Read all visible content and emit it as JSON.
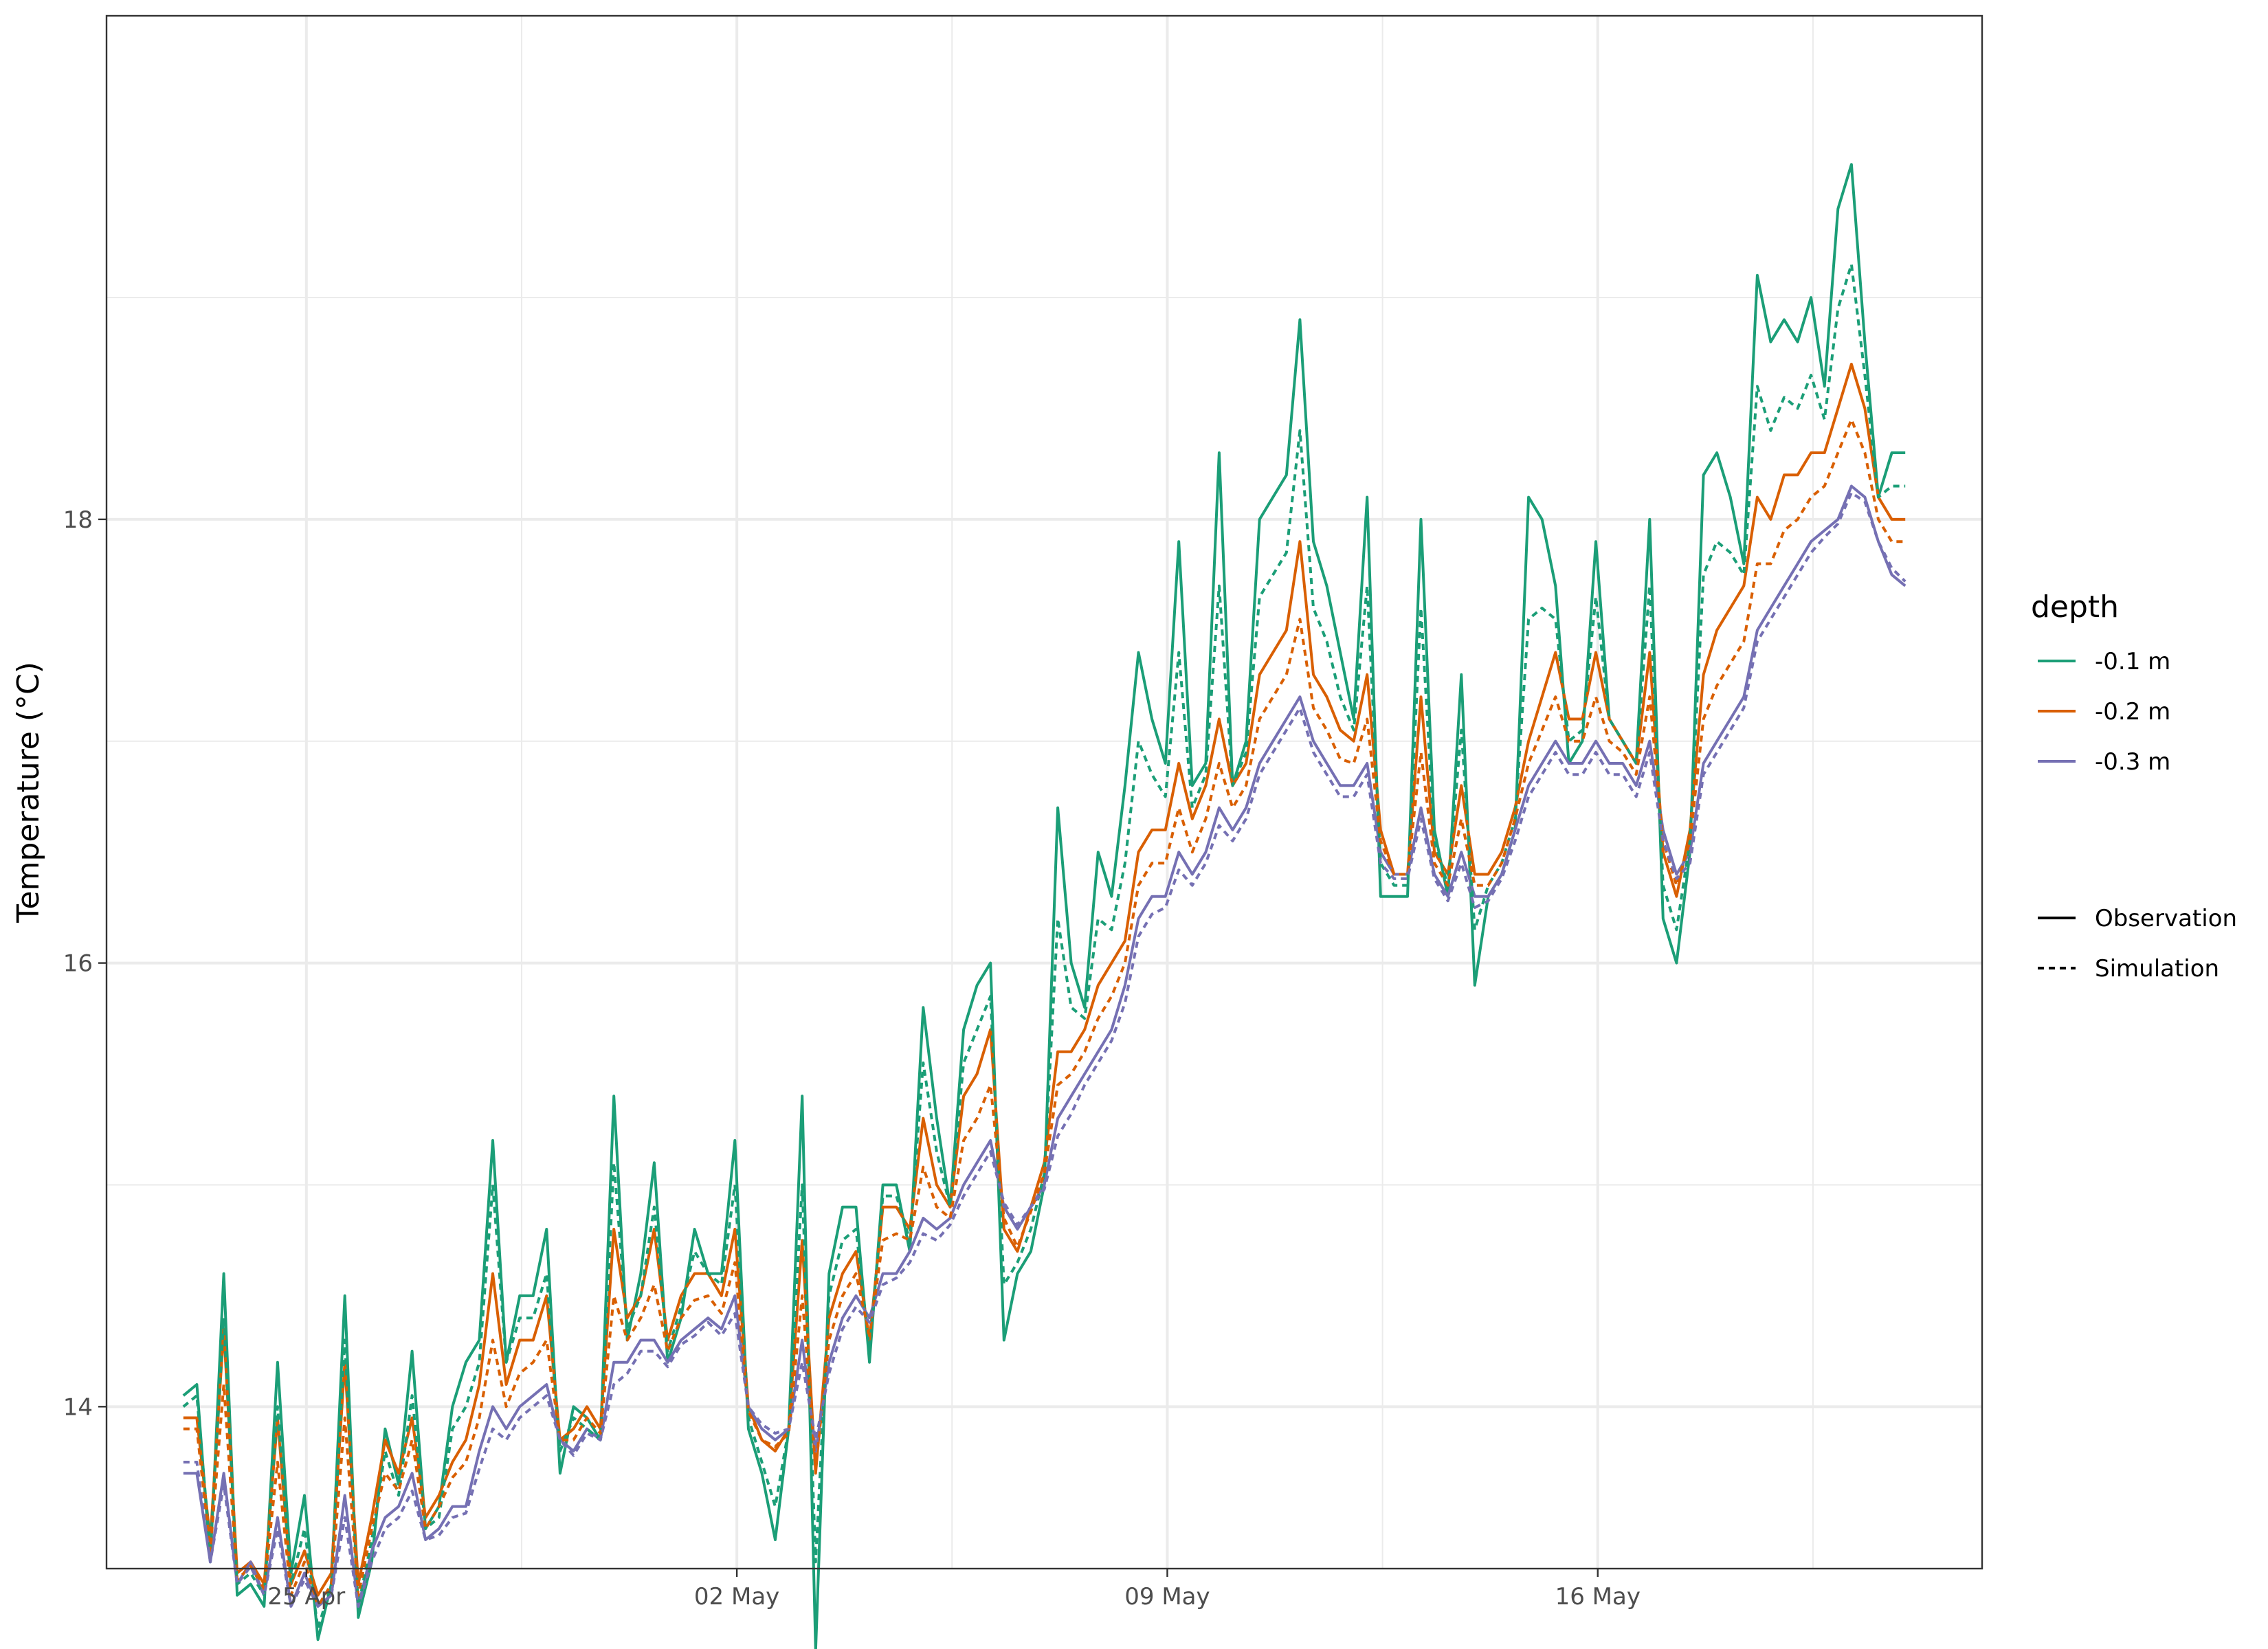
{
  "chart_data": {
    "type": "line",
    "ylabel": "Temperature (°C)",
    "xlabel": "",
    "x_start": "2024-04-23",
    "x_end": "2024-05-21",
    "xlim": [
      "2024-04-21 18:00",
      "2024-05-22 06:00"
    ],
    "ylim": [
      13.27,
      20.27
    ],
    "x_ticks": [
      {
        "date": "2024-04-25",
        "label": "25 Apr"
      },
      {
        "date": "2024-05-02",
        "label": "02 May"
      },
      {
        "date": "2024-05-09",
        "label": "09 May"
      },
      {
        "date": "2024-05-16",
        "label": "16 May"
      }
    ],
    "y_ticks": [
      {
        "value": 14,
        "label": "14"
      },
      {
        "value": 16,
        "label": "16"
      },
      {
        "value": 18,
        "label": "18"
      }
    ],
    "grid": true,
    "legend_position": "right",
    "legend": {
      "color_title": "depth",
      "color_entries": [
        "-0.1 m",
        "-0.2 m",
        "-0.3 m"
      ],
      "linetype_entries": [
        "Observation",
        "Simulation"
      ]
    },
    "series": [
      {
        "name": "-0.1 m",
        "type": "Observation",
        "color": "#1b9e77",
        "dash": "solid",
        "values": [
          14.05,
          14.1,
          13.3,
          14.6,
          13.15,
          13.2,
          13.1,
          14.2,
          13.25,
          13.6,
          12.95,
          13.2,
          14.5,
          13.05,
          13.3,
          13.9,
          13.65,
          14.25,
          13.45,
          13.55,
          14.0,
          14.2,
          14.3,
          15.2,
          14.2,
          14.5,
          14.5,
          14.8,
          13.7,
          14.0,
          13.95,
          13.85,
          15.4,
          14.3,
          14.6,
          15.1,
          14.2,
          14.4,
          14.8,
          14.6,
          14.6,
          15.2,
          13.9,
          13.7,
          13.4,
          13.9,
          15.4,
          12.9,
          14.6,
          14.9,
          14.9,
          14.2,
          15.0,
          15.0,
          14.7,
          15.8,
          15.3,
          14.9,
          15.7,
          15.9,
          16.0,
          14.3,
          14.6,
          14.7,
          15.0,
          16.7,
          16.0,
          15.8,
          16.5,
          16.3,
          16.8,
          17.4,
          17.1,
          16.9,
          17.9,
          16.8,
          16.9,
          18.3,
          16.8,
          17.0,
          18.0,
          18.1,
          18.2,
          18.9,
          17.9,
          17.7,
          17.4,
          17.1,
          18.1,
          16.3,
          16.3,
          16.3,
          18.0,
          16.6,
          16.3,
          17.3,
          15.9,
          16.3,
          16.4,
          16.6,
          18.1,
          18.0,
          17.7,
          16.9,
          17.0,
          17.9,
          17.1,
          17.0,
          16.9,
          18.0,
          16.2,
          16.0,
          16.5,
          18.2,
          18.3,
          18.1,
          17.8,
          19.1,
          18.8,
          18.9,
          18.8,
          19.0,
          18.6,
          19.4,
          19.6,
          18.8,
          18.1,
          18.3,
          18.3
        ]
      },
      {
        "name": "-0.2 m",
        "type": "Observation",
        "color": "#d95f02",
        "dash": "solid",
        "values": [
          13.95,
          13.95,
          13.4,
          14.35,
          13.25,
          13.3,
          13.2,
          13.95,
          13.2,
          13.35,
          13.15,
          13.25,
          14.2,
          13.2,
          13.5,
          13.85,
          13.7,
          13.95,
          13.5,
          13.6,
          13.75,
          13.85,
          14.1,
          14.6,
          14.1,
          14.3,
          14.3,
          14.5,
          13.85,
          13.9,
          14.0,
          13.9,
          14.8,
          14.4,
          14.5,
          14.8,
          14.3,
          14.5,
          14.6,
          14.6,
          14.5,
          14.8,
          14.0,
          13.85,
          13.8,
          13.9,
          14.75,
          13.7,
          14.4,
          14.6,
          14.7,
          14.3,
          14.9,
          14.9,
          14.8,
          15.3,
          15.0,
          14.9,
          15.4,
          15.5,
          15.7,
          14.8,
          14.7,
          14.9,
          15.1,
          15.6,
          15.6,
          15.7,
          15.9,
          16.0,
          16.1,
          16.5,
          16.6,
          16.6,
          16.9,
          16.65,
          16.8,
          17.1,
          16.8,
          16.9,
          17.3,
          17.4,
          17.5,
          17.9,
          17.3,
          17.2,
          17.05,
          17.0,
          17.3,
          16.6,
          16.4,
          16.4,
          17.2,
          16.5,
          16.4,
          16.8,
          16.4,
          16.4,
          16.5,
          16.7,
          17.0,
          17.2,
          17.4,
          17.1,
          17.1,
          17.4,
          17.1,
          17.0,
          16.9,
          17.4,
          16.5,
          16.3,
          16.6,
          17.3,
          17.5,
          17.6,
          17.7,
          18.1,
          18.0,
          18.2,
          18.2,
          18.3,
          18.3,
          18.5,
          18.7,
          18.5,
          18.1,
          18.0,
          18.0
        ]
      },
      {
        "name": "-0.3 m",
        "type": "Observation",
        "color": "#7570b3",
        "dash": "solid",
        "values": [
          13.7,
          13.7,
          13.3,
          13.7,
          13.2,
          13.3,
          13.15,
          13.5,
          13.1,
          13.25,
          13.1,
          13.15,
          13.6,
          13.1,
          13.35,
          13.5,
          13.55,
          13.7,
          13.4,
          13.45,
          13.55,
          13.55,
          13.8,
          14.0,
          13.9,
          14.0,
          14.05,
          14.1,
          13.85,
          13.8,
          13.9,
          13.85,
          14.2,
          14.2,
          14.3,
          14.3,
          14.2,
          14.3,
          14.35,
          14.4,
          14.35,
          14.5,
          14.0,
          13.9,
          13.85,
          13.9,
          14.3,
          13.8,
          14.2,
          14.4,
          14.5,
          14.4,
          14.6,
          14.6,
          14.7,
          14.85,
          14.8,
          14.85,
          15.0,
          15.1,
          15.2,
          14.9,
          14.8,
          14.9,
          15.0,
          15.3,
          15.4,
          15.5,
          15.6,
          15.7,
          15.9,
          16.2,
          16.3,
          16.3,
          16.5,
          16.4,
          16.5,
          16.7,
          16.6,
          16.7,
          16.9,
          17.0,
          17.1,
          17.2,
          17.0,
          16.9,
          16.8,
          16.8,
          16.9,
          16.5,
          16.4,
          16.4,
          16.7,
          16.4,
          16.3,
          16.5,
          16.3,
          16.3,
          16.4,
          16.6,
          16.8,
          16.9,
          17.0,
          16.9,
          16.9,
          17.0,
          16.9,
          16.9,
          16.8,
          17.0,
          16.6,
          16.4,
          16.5,
          16.9,
          17.0,
          17.1,
          17.2,
          17.5,
          17.6,
          17.7,
          17.8,
          17.9,
          17.95,
          18.0,
          18.15,
          18.1,
          17.9,
          17.75,
          17.7
        ]
      },
      {
        "name": "-0.1 m",
        "type": "Simulation",
        "color": "#1b9e77",
        "dash": "dashed",
        "values": [
          14.0,
          14.05,
          13.35,
          14.4,
          13.2,
          13.25,
          13.15,
          14.0,
          13.2,
          13.45,
          13.0,
          13.2,
          14.3,
          13.1,
          13.4,
          13.8,
          13.6,
          14.05,
          13.45,
          13.5,
          13.9,
          14.0,
          14.2,
          15.0,
          14.2,
          14.4,
          14.4,
          14.6,
          13.8,
          13.95,
          13.9,
          13.85,
          15.1,
          14.35,
          14.5,
          14.9,
          14.25,
          14.45,
          14.7,
          14.6,
          14.55,
          15.0,
          13.95,
          13.75,
          13.55,
          13.9,
          15.0,
          13.3,
          14.5,
          14.75,
          14.8,
          14.25,
          14.95,
          14.95,
          14.75,
          15.55,
          15.15,
          14.9,
          15.55,
          15.7,
          15.85,
          14.55,
          14.65,
          14.8,
          15.05,
          16.2,
          15.8,
          15.75,
          16.2,
          16.15,
          16.45,
          17.0,
          16.85,
          16.75,
          17.4,
          16.7,
          16.85,
          17.7,
          16.8,
          16.95,
          17.65,
          17.75,
          17.85,
          18.4,
          17.6,
          17.45,
          17.2,
          17.05,
          17.7,
          16.45,
          16.35,
          16.35,
          17.6,
          16.55,
          16.35,
          17.05,
          16.15,
          16.35,
          16.45,
          16.65,
          17.55,
          17.6,
          17.55,
          17.0,
          17.05,
          17.65,
          17.1,
          17.0,
          16.9,
          17.7,
          16.35,
          16.15,
          16.55,
          17.75,
          17.9,
          17.85,
          17.75,
          18.6,
          18.4,
          18.55,
          18.5,
          18.65,
          18.45,
          18.95,
          19.15,
          18.65,
          18.1,
          18.15,
          18.15
        ]
      },
      {
        "name": "-0.2 m",
        "type": "Simulation",
        "color": "#d95f02",
        "dash": "dashed",
        "values": [
          13.9,
          13.9,
          13.35,
          14.1,
          13.22,
          13.28,
          13.18,
          13.75,
          13.15,
          13.3,
          13.1,
          13.2,
          13.95,
          13.15,
          13.45,
          13.7,
          13.62,
          13.85,
          13.45,
          13.55,
          13.68,
          13.75,
          13.95,
          14.3,
          14.0,
          14.15,
          14.2,
          14.3,
          13.85,
          13.85,
          13.95,
          13.88,
          14.5,
          14.3,
          14.4,
          14.55,
          14.25,
          14.4,
          14.48,
          14.5,
          14.42,
          14.65,
          13.98,
          13.85,
          13.82,
          13.88,
          14.5,
          13.72,
          14.3,
          14.5,
          14.6,
          14.32,
          14.75,
          14.78,
          14.75,
          15.08,
          14.9,
          14.85,
          15.2,
          15.3,
          15.45,
          14.85,
          14.72,
          14.88,
          15.05,
          15.45,
          15.5,
          15.6,
          15.75,
          15.85,
          16.0,
          16.35,
          16.45,
          16.45,
          16.7,
          16.5,
          16.65,
          16.9,
          16.7,
          16.8,
          17.1,
          17.2,
          17.3,
          17.55,
          17.15,
          17.05,
          16.92,
          16.9,
          17.1,
          16.55,
          16.4,
          16.4,
          16.95,
          16.45,
          16.35,
          16.65,
          16.35,
          16.35,
          16.45,
          16.65,
          16.9,
          17.05,
          17.2,
          17.0,
          17.0,
          17.2,
          17.0,
          16.95,
          16.85,
          17.2,
          16.55,
          16.35,
          16.55,
          17.1,
          17.25,
          17.35,
          17.45,
          17.8,
          17.8,
          17.95,
          18.0,
          18.1,
          18.15,
          18.3,
          18.45,
          18.3,
          18.0,
          17.9,
          17.9
        ]
      },
      {
        "name": "-0.3 m",
        "type": "Simulation",
        "color": "#7570b3",
        "dash": "dashed",
        "values": [
          13.75,
          13.75,
          13.3,
          13.65,
          13.2,
          13.28,
          13.15,
          13.45,
          13.1,
          13.22,
          13.1,
          13.15,
          13.5,
          13.1,
          13.3,
          13.45,
          13.5,
          13.62,
          13.4,
          13.42,
          13.5,
          13.52,
          13.72,
          13.9,
          13.85,
          13.95,
          14.0,
          14.05,
          13.85,
          13.78,
          13.88,
          13.85,
          14.1,
          14.15,
          14.25,
          14.25,
          14.18,
          14.28,
          14.32,
          14.38,
          14.32,
          14.42,
          14.0,
          13.92,
          13.88,
          13.9,
          14.2,
          13.85,
          14.15,
          14.35,
          14.45,
          14.38,
          14.55,
          14.58,
          14.65,
          14.78,
          14.75,
          14.82,
          14.95,
          15.05,
          15.15,
          14.92,
          14.82,
          14.9,
          14.98,
          15.22,
          15.32,
          15.45,
          15.55,
          15.65,
          15.82,
          16.12,
          16.22,
          16.25,
          16.42,
          16.35,
          16.45,
          16.62,
          16.55,
          16.65,
          16.85,
          16.95,
          17.05,
          17.15,
          16.95,
          16.85,
          16.75,
          16.75,
          16.85,
          16.45,
          16.38,
          16.38,
          16.65,
          16.38,
          16.28,
          16.45,
          16.25,
          16.28,
          16.38,
          16.55,
          16.75,
          16.85,
          16.95,
          16.85,
          16.85,
          16.95,
          16.85,
          16.85,
          16.75,
          16.95,
          16.55,
          16.38,
          16.45,
          16.85,
          16.95,
          17.05,
          17.15,
          17.45,
          17.55,
          17.65,
          17.75,
          17.85,
          17.92,
          17.98,
          18.12,
          18.08,
          17.9,
          17.78,
          17.72
        ]
      }
    ]
  }
}
